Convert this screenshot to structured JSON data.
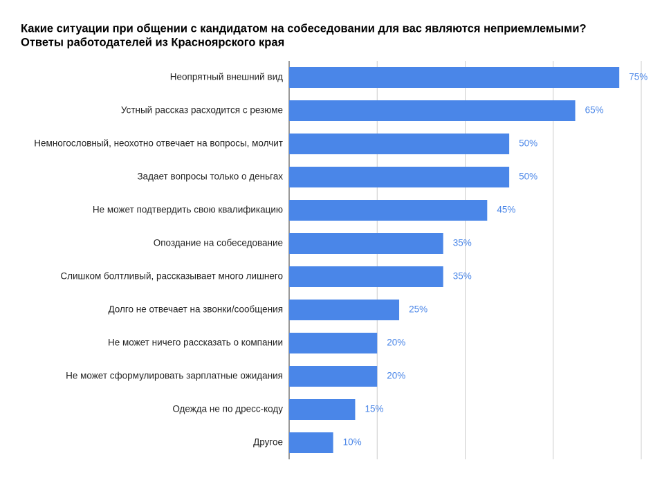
{
  "chart_data": {
    "type": "hbar",
    "title": "Какие ситуации при общении с кандидатом на собеседовании для вас являются неприемлемыми?",
    "subtitle": "Ответы работодателей из Красноярского края",
    "categories": [
      "Неопрятный внешний вид",
      "Устный рассказ расходится с резюме",
      "Немногословный, неохотно отвечает на вопросы, молчит",
      "Задает вопросы только о деньгах",
      "Не может подтвердить свою квалификацию",
      "Опоздание на собеседование",
      "Слишком болтливый, рассказывает много лишнего",
      "Долго не отвечает на звонки/сообщения",
      "Не может ничего рассказать о компании",
      "Не может сформулировать зарплатные ожидания",
      "Одежда не по дресс-коду",
      "Другое"
    ],
    "values": [
      75,
      65,
      50,
      50,
      45,
      35,
      35,
      25,
      20,
      20,
      15,
      10
    ],
    "value_labels": [
      "75%",
      "65%",
      "50%",
      "50%",
      "45%",
      "35%",
      "35%",
      "25%",
      "20%",
      "20%",
      "15%",
      "10%"
    ],
    "color": "#4a86e8",
    "label_color": "#4a86e8",
    "xlim": [
      0,
      80
    ],
    "xticks": [
      0,
      20,
      40,
      60,
      80
    ],
    "grid": true
  }
}
